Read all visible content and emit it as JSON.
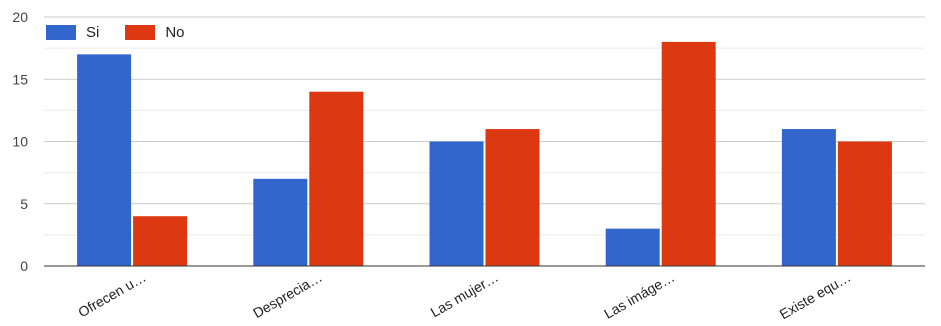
{
  "chart_data": {
    "type": "bar",
    "categories": [
      "Ofrecen u…",
      "Desprecia…",
      "Las mujer…",
      "Las imáge…",
      "Existe equ…"
    ],
    "series": [
      {
        "name": "Si",
        "color": "#3366cc",
        "values": [
          17,
          7,
          10,
          3,
          11
        ]
      },
      {
        "name": "No",
        "color": "#dc3912",
        "values": [
          4,
          14,
          11,
          18,
          10
        ]
      }
    ],
    "y_ticks": [
      "0",
      "5",
      "10",
      "15",
      "20"
    ],
    "ylim": [
      0,
      20
    ],
    "grid": true,
    "legend_position": "top-left"
  }
}
